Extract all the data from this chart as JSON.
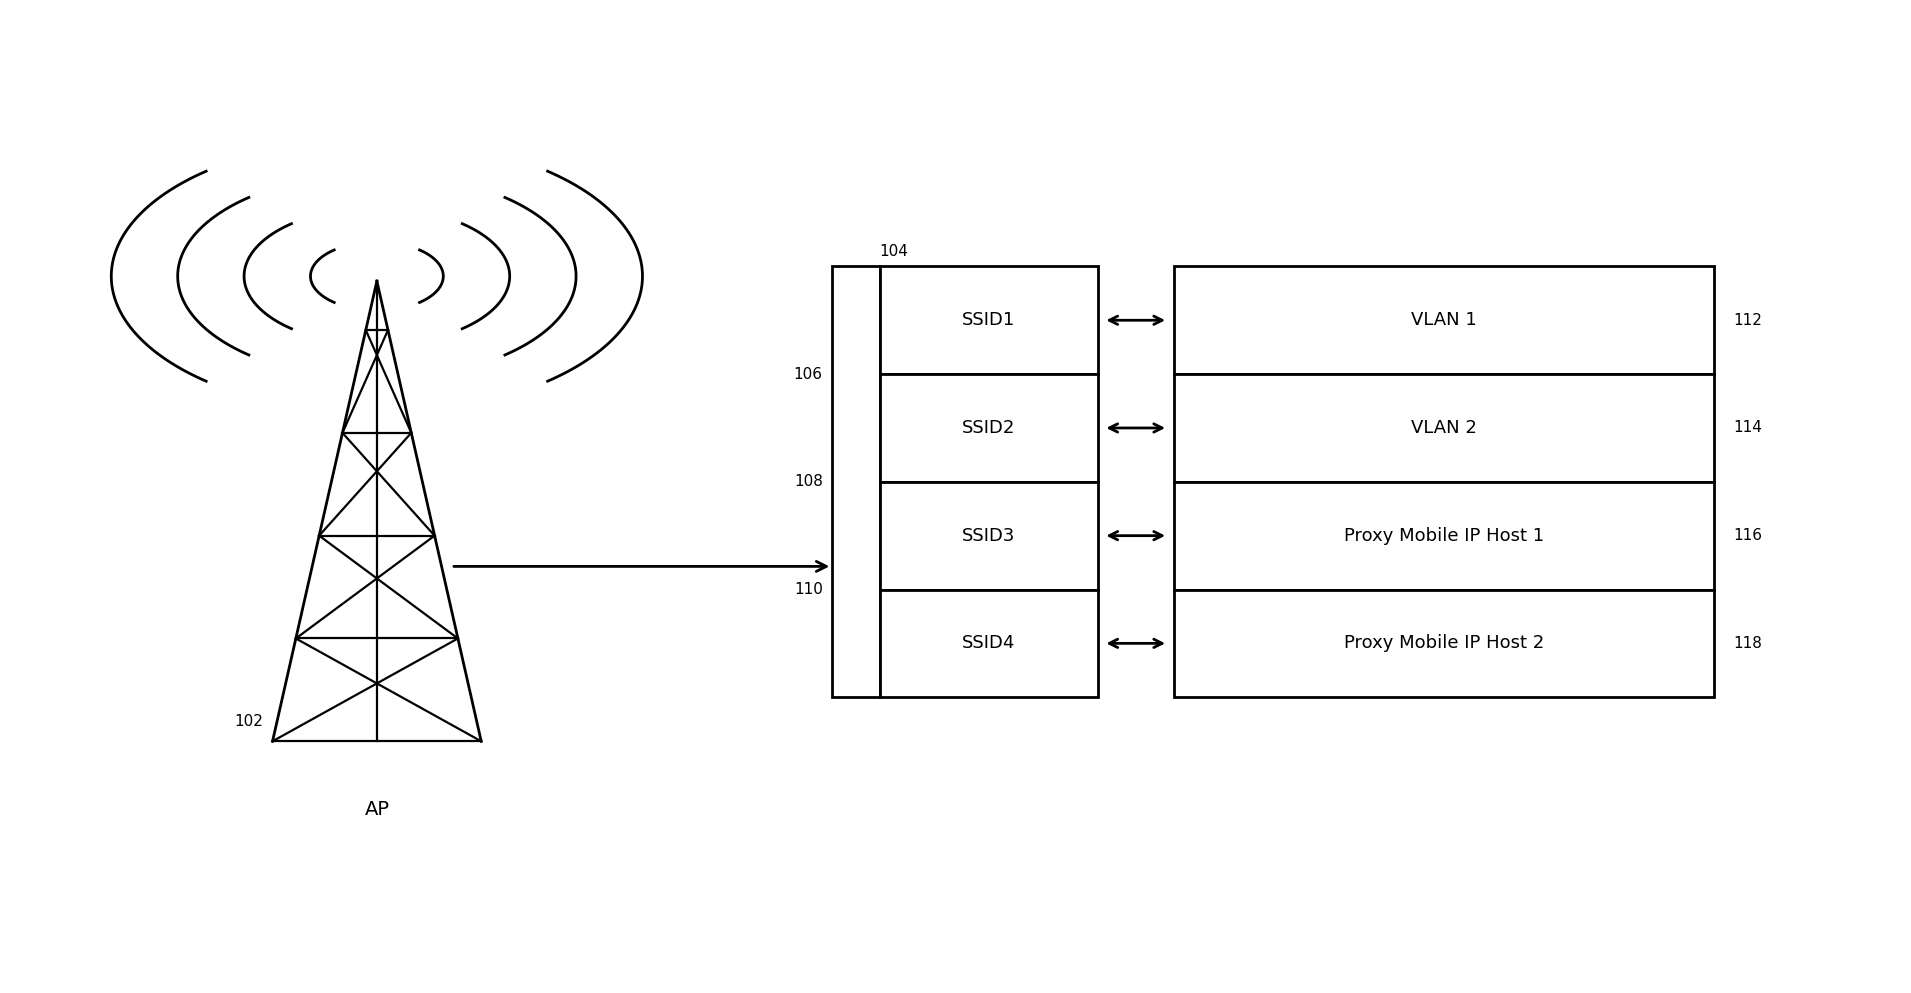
{
  "background_color": "#ffffff",
  "fig_width": 19.11,
  "fig_height": 9.93,
  "ap_label": "AP",
  "ap_ref": "102",
  "ssid_labels": [
    "SSID1",
    "SSID2",
    "SSID3",
    "SSID4"
  ],
  "ssid_refs": [
    "104",
    "106",
    "108",
    "110"
  ],
  "vlan_labels": [
    "VLAN 1",
    "VLAN 2",
    "Proxy Mobile IP Host 1",
    "Proxy Mobile IP Host 2"
  ],
  "vlan_refs": [
    "112",
    "114",
    "116",
    "118"
  ],
  "box_edge_color": "#000000",
  "text_color": "#000000",
  "font_size_refs": 11,
  "font_size_ssid": 13,
  "font_size_vlan": 13,
  "font_size_ap": 14
}
